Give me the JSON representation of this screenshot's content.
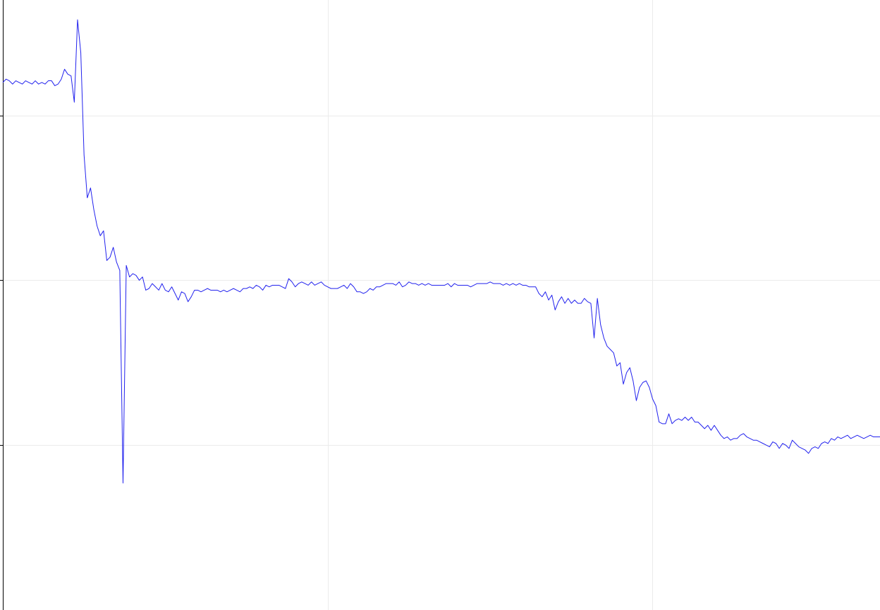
{
  "chart_data": {
    "type": "line",
    "title": "",
    "xlabel": "",
    "ylabel": "",
    "grid": true,
    "xlim": [
      0,
      270
    ],
    "ylim": [
      -1,
      2.7
    ],
    "x_gridlines": [
      100,
      200
    ],
    "y_gridlines": [
      0,
      1,
      2
    ],
    "y_ticks": [
      0,
      1,
      2
    ],
    "series": [
      {
        "color": "#2222ee",
        "points": [
          [
            0,
            2.2
          ],
          [
            1,
            2.22
          ],
          [
            2,
            2.21
          ],
          [
            3,
            2.19
          ],
          [
            4,
            2.21
          ],
          [
            5,
            2.2
          ],
          [
            6,
            2.19
          ],
          [
            7,
            2.21
          ],
          [
            8,
            2.2
          ],
          [
            9,
            2.19
          ],
          [
            10,
            2.21
          ],
          [
            11,
            2.19
          ],
          [
            12,
            2.2
          ],
          [
            13,
            2.19
          ],
          [
            14,
            2.21
          ],
          [
            15,
            2.21
          ],
          [
            16,
            2.18
          ],
          [
            17,
            2.19
          ],
          [
            18,
            2.22
          ],
          [
            19,
            2.28
          ],
          [
            20,
            2.25
          ],
          [
            21,
            2.24
          ],
          [
            22,
            2.08
          ],
          [
            23,
            2.58
          ],
          [
            24,
            2.38
          ],
          [
            25,
            1.76
          ],
          [
            26,
            1.5
          ],
          [
            27,
            1.56
          ],
          [
            28,
            1.43
          ],
          [
            29,
            1.33
          ],
          [
            30,
            1.27
          ],
          [
            31,
            1.3
          ],
          [
            32,
            1.12
          ],
          [
            33,
            1.14
          ],
          [
            34,
            1.2
          ],
          [
            35,
            1.11
          ],
          [
            36,
            1.06
          ],
          [
            37,
            -0.23
          ],
          [
            38,
            1.09
          ],
          [
            39,
            1.02
          ],
          [
            40,
            1.04
          ],
          [
            41,
            1.03
          ],
          [
            42,
            1.0
          ],
          [
            43,
            1.02
          ],
          [
            44,
            0.94
          ],
          [
            45,
            0.95
          ],
          [
            46,
            0.98
          ],
          [
            47,
            0.96
          ],
          [
            48,
            0.94
          ],
          [
            49,
            0.98
          ],
          [
            50,
            0.94
          ],
          [
            51,
            0.93
          ],
          [
            52,
            0.96
          ],
          [
            53,
            0.92
          ],
          [
            54,
            0.88
          ],
          [
            55,
            0.93
          ],
          [
            56,
            0.92
          ],
          [
            57,
            0.87
          ],
          [
            58,
            0.9
          ],
          [
            59,
            0.94
          ],
          [
            60,
            0.94
          ],
          [
            61,
            0.93
          ],
          [
            62,
            0.94
          ],
          [
            63,
            0.95
          ],
          [
            64,
            0.94
          ],
          [
            65,
            0.94
          ],
          [
            66,
            0.94
          ],
          [
            67,
            0.93
          ],
          [
            68,
            0.94
          ],
          [
            69,
            0.93
          ],
          [
            70,
            0.94
          ],
          [
            71,
            0.95
          ],
          [
            72,
            0.94
          ],
          [
            73,
            0.93
          ],
          [
            74,
            0.95
          ],
          [
            75,
            0.95
          ],
          [
            76,
            0.96
          ],
          [
            77,
            0.95
          ],
          [
            78,
            0.97
          ],
          [
            79,
            0.96
          ],
          [
            80,
            0.94
          ],
          [
            81,
            0.97
          ],
          [
            82,
            0.96
          ],
          [
            83,
            0.97
          ],
          [
            84,
            0.97
          ],
          [
            85,
            0.97
          ],
          [
            86,
            0.96
          ],
          [
            87,
            0.95
          ],
          [
            88,
            1.01
          ],
          [
            89,
            0.99
          ],
          [
            90,
            0.96
          ],
          [
            91,
            0.98
          ],
          [
            92,
            0.99
          ],
          [
            93,
            0.98
          ],
          [
            94,
            0.97
          ],
          [
            95,
            0.99
          ],
          [
            96,
            0.97
          ],
          [
            97,
            0.98
          ],
          [
            98,
            0.99
          ],
          [
            99,
            0.97
          ],
          [
            100,
            0.96
          ],
          [
            101,
            0.95
          ],
          [
            102,
            0.95
          ],
          [
            103,
            0.95
          ],
          [
            104,
            0.96
          ],
          [
            105,
            0.97
          ],
          [
            106,
            0.95
          ],
          [
            107,
            0.98
          ],
          [
            108,
            0.96
          ],
          [
            109,
            0.93
          ],
          [
            110,
            0.93
          ],
          [
            111,
            0.92
          ],
          [
            112,
            0.93
          ],
          [
            113,
            0.95
          ],
          [
            114,
            0.94
          ],
          [
            115,
            0.96
          ],
          [
            116,
            0.96
          ],
          [
            117,
            0.97
          ],
          [
            118,
            0.98
          ],
          [
            119,
            0.98
          ],
          [
            120,
            0.98
          ],
          [
            121,
            0.97
          ],
          [
            122,
            0.99
          ],
          [
            123,
            0.96
          ],
          [
            124,
            0.97
          ],
          [
            125,
            0.99
          ],
          [
            126,
            0.98
          ],
          [
            127,
            0.98
          ],
          [
            128,
            0.97
          ],
          [
            129,
            0.98
          ],
          [
            130,
            0.97
          ],
          [
            131,
            0.98
          ],
          [
            132,
            0.97
          ],
          [
            133,
            0.97
          ],
          [
            134,
            0.97
          ],
          [
            135,
            0.97
          ],
          [
            136,
            0.97
          ],
          [
            137,
            0.98
          ],
          [
            138,
            0.96
          ],
          [
            139,
            0.98
          ],
          [
            140,
            0.97
          ],
          [
            141,
            0.97
          ],
          [
            142,
            0.97
          ],
          [
            143,
            0.97
          ],
          [
            144,
            0.96
          ],
          [
            145,
            0.97
          ],
          [
            146,
            0.98
          ],
          [
            147,
            0.98
          ],
          [
            148,
            0.98
          ],
          [
            149,
            0.98
          ],
          [
            150,
            0.99
          ],
          [
            151,
            0.98
          ],
          [
            152,
            0.98
          ],
          [
            153,
            0.98
          ],
          [
            154,
            0.97
          ],
          [
            155,
            0.98
          ],
          [
            156,
            0.97
          ],
          [
            157,
            0.98
          ],
          [
            158,
            0.97
          ],
          [
            159,
            0.98
          ],
          [
            160,
            0.97
          ],
          [
            161,
            0.97
          ],
          [
            162,
            0.96
          ],
          [
            163,
            0.96
          ],
          [
            164,
            0.96
          ],
          [
            165,
            0.92
          ],
          [
            166,
            0.9
          ],
          [
            167,
            0.93
          ],
          [
            168,
            0.88
          ],
          [
            169,
            0.91
          ],
          [
            170,
            0.82
          ],
          [
            171,
            0.87
          ],
          [
            172,
            0.9
          ],
          [
            173,
            0.86
          ],
          [
            174,
            0.89
          ],
          [
            175,
            0.86
          ],
          [
            176,
            0.88
          ],
          [
            177,
            0.86
          ],
          [
            178,
            0.86
          ],
          [
            179,
            0.89
          ],
          [
            180,
            0.87
          ],
          [
            181,
            0.86
          ],
          [
            182,
            0.65
          ],
          [
            183,
            0.89
          ],
          [
            184,
            0.73
          ],
          [
            185,
            0.65
          ],
          [
            186,
            0.6
          ],
          [
            187,
            0.58
          ],
          [
            188,
            0.56
          ],
          [
            189,
            0.48
          ],
          [
            190,
            0.5
          ],
          [
            191,
            0.37
          ],
          [
            192,
            0.44
          ],
          [
            193,
            0.47
          ],
          [
            194,
            0.39
          ],
          [
            195,
            0.27
          ],
          [
            196,
            0.35
          ],
          [
            197,
            0.38
          ],
          [
            198,
            0.39
          ],
          [
            199,
            0.35
          ],
          [
            200,
            0.28
          ],
          [
            201,
            0.24
          ],
          [
            202,
            0.14
          ],
          [
            203,
            0.13
          ],
          [
            204,
            0.13
          ],
          [
            205,
            0.19
          ],
          [
            206,
            0.13
          ],
          [
            207,
            0.15
          ],
          [
            208,
            0.16
          ],
          [
            209,
            0.15
          ],
          [
            210,
            0.17
          ],
          [
            211,
            0.15
          ],
          [
            212,
            0.17
          ],
          [
            213,
            0.14
          ],
          [
            214,
            0.14
          ],
          [
            215,
            0.12
          ],
          [
            216,
            0.1
          ],
          [
            217,
            0.12
          ],
          [
            218,
            0.09
          ],
          [
            219,
            0.12
          ],
          [
            220,
            0.09
          ],
          [
            221,
            0.06
          ],
          [
            222,
            0.04
          ],
          [
            223,
            0.05
          ],
          [
            224,
            0.03
          ],
          [
            225,
            0.04
          ],
          [
            226,
            0.04
          ],
          [
            227,
            0.06
          ],
          [
            228,
            0.07
          ],
          [
            229,
            0.05
          ],
          [
            230,
            0.04
          ],
          [
            231,
            0.03
          ],
          [
            232,
            0.03
          ],
          [
            233,
            0.02
          ],
          [
            234,
            0.01
          ],
          [
            235,
            0.0
          ],
          [
            236,
            -0.01
          ],
          [
            237,
            0.02
          ],
          [
            238,
            0.01
          ],
          [
            239,
            -0.02
          ],
          [
            240,
            0.01
          ],
          [
            241,
            0.0
          ],
          [
            242,
            -0.02
          ],
          [
            243,
            0.03
          ],
          [
            244,
            0.01
          ],
          [
            245,
            -0.01
          ],
          [
            246,
            -0.02
          ],
          [
            247,
            -0.03
          ],
          [
            248,
            -0.05
          ],
          [
            249,
            -0.02
          ],
          [
            250,
            -0.01
          ],
          [
            251,
            -0.02
          ],
          [
            252,
            0.01
          ],
          [
            253,
            0.02
          ],
          [
            254,
            0.01
          ],
          [
            255,
            0.04
          ],
          [
            256,
            0.03
          ],
          [
            257,
            0.05
          ],
          [
            258,
            0.04
          ],
          [
            259,
            0.05
          ],
          [
            260,
            0.06
          ],
          [
            261,
            0.04
          ],
          [
            262,
            0.05
          ],
          [
            263,
            0.06
          ],
          [
            264,
            0.05
          ],
          [
            265,
            0.04
          ],
          [
            266,
            0.05
          ],
          [
            267,
            0.06
          ],
          [
            268,
            0.05
          ],
          [
            269,
            0.05
          ],
          [
            270,
            0.05
          ]
        ]
      }
    ]
  }
}
